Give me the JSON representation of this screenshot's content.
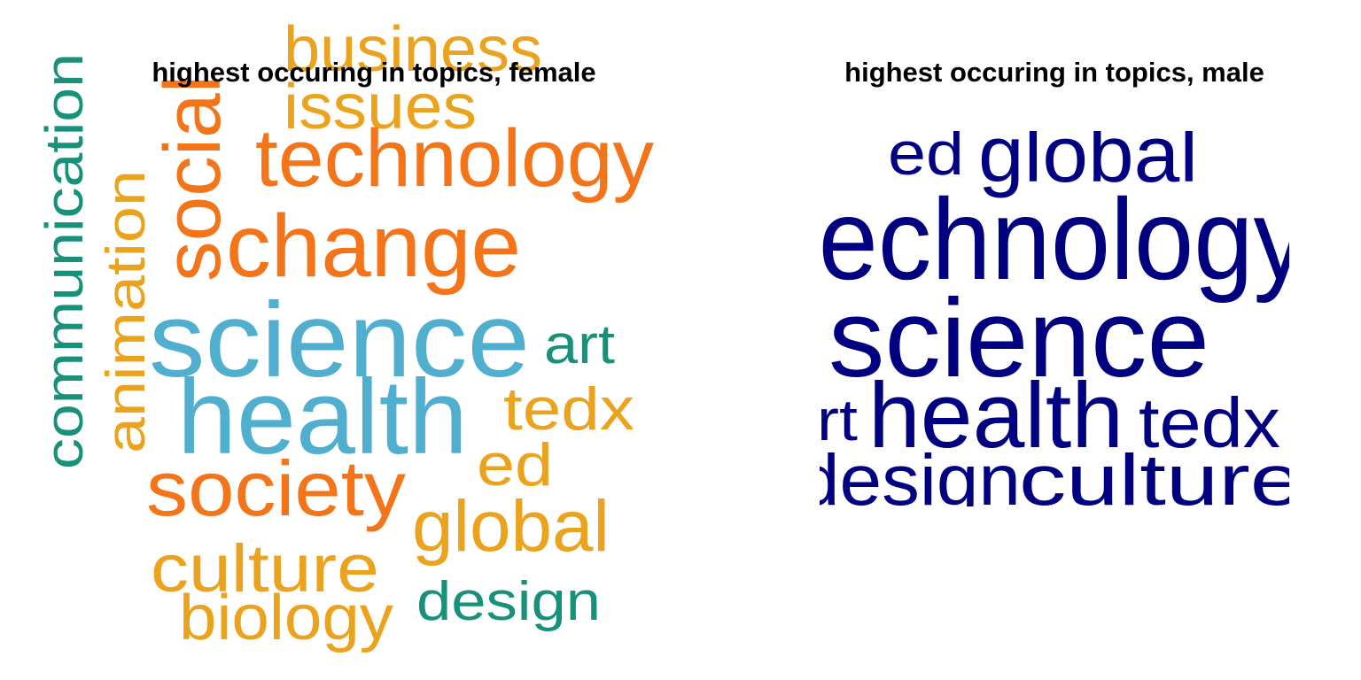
{
  "panels": [
    {
      "title": "highest occuring in topics, female",
      "words": [
        {
          "text": "business",
          "color": "#eba21c"
        },
        {
          "text": "issues",
          "color": "#eba21c"
        },
        {
          "text": "technology",
          "color": "#f37419"
        },
        {
          "text": "change",
          "color": "#f37419"
        },
        {
          "text": "social",
          "color": "#f37419"
        },
        {
          "text": "communication",
          "color": "#17917a"
        },
        {
          "text": "animation",
          "color": "#eba21c"
        },
        {
          "text": "science",
          "color": "#50aecf"
        },
        {
          "text": "art",
          "color": "#17917a"
        },
        {
          "text": "health",
          "color": "#50aecf"
        },
        {
          "text": "tedx",
          "color": "#eba21c"
        },
        {
          "text": "ed",
          "color": "#eba21c"
        },
        {
          "text": "society",
          "color": "#f37419"
        },
        {
          "text": "global",
          "color": "#eba21c"
        },
        {
          "text": "culture",
          "color": "#eba21c"
        },
        {
          "text": "design",
          "color": "#17917a"
        },
        {
          "text": "biology",
          "color": "#eba21c"
        }
      ]
    },
    {
      "title": "highest occuring in topics, male",
      "words": [
        {
          "text": "ed",
          "color": "#000080"
        },
        {
          "text": "global",
          "color": "#000080"
        },
        {
          "text": "technology",
          "color": "#000080"
        },
        {
          "text": "science",
          "color": "#000080"
        },
        {
          "text": "art",
          "color": "#000080"
        },
        {
          "text": "health",
          "color": "#000080"
        },
        {
          "text": "tedx",
          "color": "#000080"
        },
        {
          "text": "design",
          "color": "#000080"
        },
        {
          "text": "culture",
          "color": "#000080"
        }
      ]
    }
  ]
}
